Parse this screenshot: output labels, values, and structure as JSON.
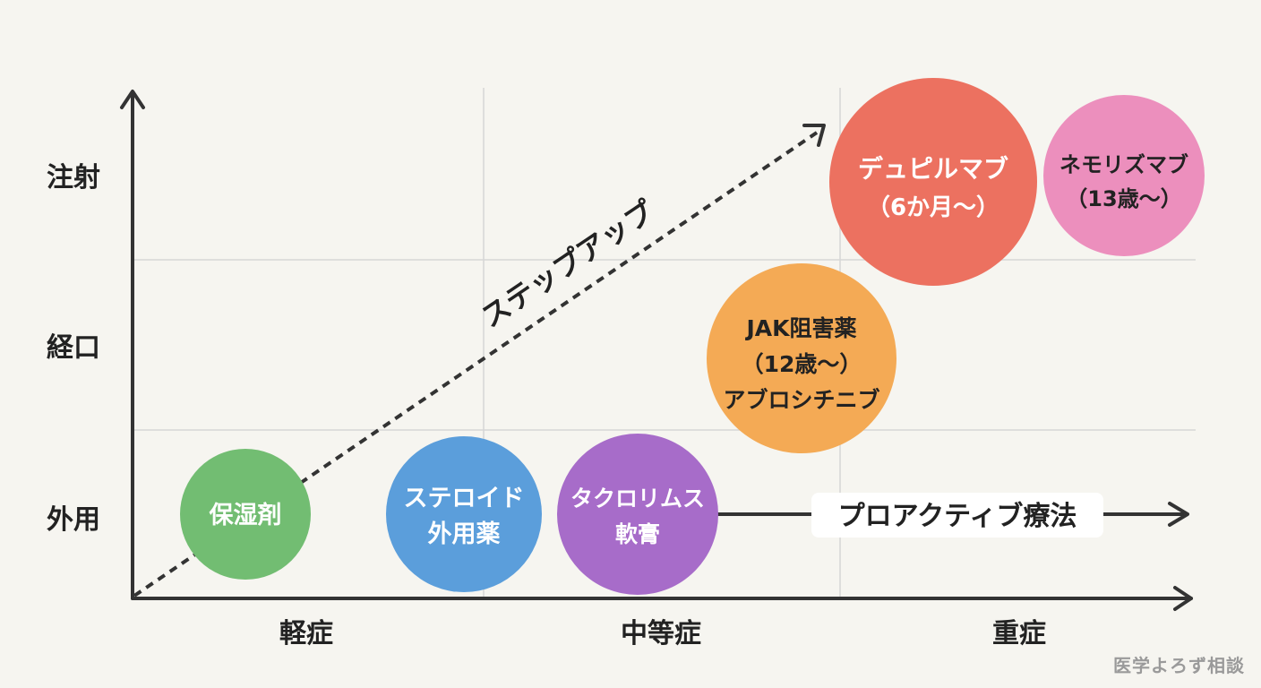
{
  "y_axis": {
    "labels": [
      "注射",
      "経口",
      "外用"
    ]
  },
  "x_axis": {
    "labels": [
      "軽症",
      "中等症",
      "重症"
    ]
  },
  "step_up_label": "ステップアップ",
  "proactive_label": "プロアクティブ療法",
  "watermark": "医学よろず相談",
  "bubbles": [
    {
      "id": "moisturizer",
      "lines": [
        "保湿剤"
      ],
      "color": "#72bd72"
    },
    {
      "id": "steroid",
      "lines": [
        "ステロイド",
        "外用薬"
      ],
      "color": "#5b9edb"
    },
    {
      "id": "tacrolimus",
      "lines": [
        "タクロリムス",
        "軟膏"
      ],
      "color": "#a76cc9"
    },
    {
      "id": "jak",
      "lines": [
        "JAK阻害薬",
        "（12歳〜）",
        "アブロシチニブ"
      ],
      "color": "#f4aa55"
    },
    {
      "id": "dupilumab",
      "lines": [
        "デュピルマブ",
        "（6か月〜）"
      ],
      "color": "#ec7160"
    },
    {
      "id": "nemolizumab",
      "lines": [
        "ネモリズマブ",
        "（13歳〜）"
      ],
      "color": "#ec8fbd"
    }
  ],
  "colors": {
    "axis": "#333333",
    "grid": "#d6d6d6",
    "text": "#222222"
  }
}
